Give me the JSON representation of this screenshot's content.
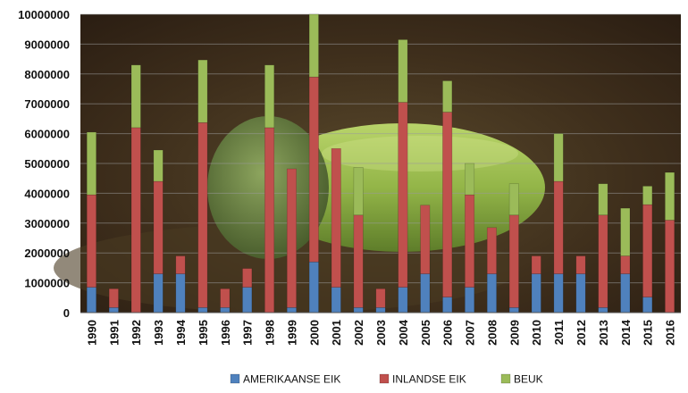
{
  "chart_data": {
    "type": "bar",
    "stacked": true,
    "ylim": [
      0,
      10000000
    ],
    "y_ticks": [
      0,
      1000000,
      2000000,
      3000000,
      4000000,
      5000000,
      6000000,
      7000000,
      8000000,
      9000000,
      10000000
    ],
    "grid": true,
    "legend_position": "bottom",
    "background": "photo of a green acorn on brown forest floor",
    "categories": [
      "1990",
      "1991",
      "1992",
      "1993",
      "1994",
      "1995",
      "1996",
      "1997",
      "1998",
      "1999",
      "2000",
      "2001",
      "2002",
      "2003",
      "2004",
      "2005",
      "2006",
      "2007",
      "2008",
      "2009",
      "2010",
      "2011",
      "2012",
      "2013",
      "2014",
      "2015",
      "2016"
    ],
    "series": [
      {
        "name": "AMERIKAANSE EIK",
        "color": "#4f81bd",
        "values": [
          850000,
          170000,
          0,
          1300000,
          1300000,
          170000,
          170000,
          850000,
          0,
          170000,
          1700000,
          850000,
          170000,
          170000,
          850000,
          1300000,
          520000,
          850000,
          1300000,
          170000,
          1300000,
          1300000,
          1300000,
          170000,
          1300000,
          520000,
          0
        ]
      },
      {
        "name": "INLANDSE EIK",
        "color": "#c0504d",
        "values": [
          3100000,
          630000,
          6200000,
          3100000,
          600000,
          6200000,
          630000,
          630000,
          6200000,
          4650000,
          6200000,
          4650000,
          3100000,
          630000,
          6200000,
          2300000,
          6200000,
          3100000,
          1550000,
          3100000,
          600000,
          3100000,
          600000,
          3100000,
          600000,
          3100000,
          3100000
        ]
      },
      {
        "name": "BEUK",
        "color": "#9bbb59",
        "values": [
          2100000,
          0,
          2100000,
          1050000,
          0,
          2100000,
          0,
          0,
          2100000,
          0,
          2100000,
          0,
          1600000,
          0,
          2100000,
          0,
          1050000,
          1050000,
          0,
          1050000,
          0,
          1600000,
          0,
          1050000,
          1600000,
          620000,
          1600000
        ]
      }
    ]
  }
}
